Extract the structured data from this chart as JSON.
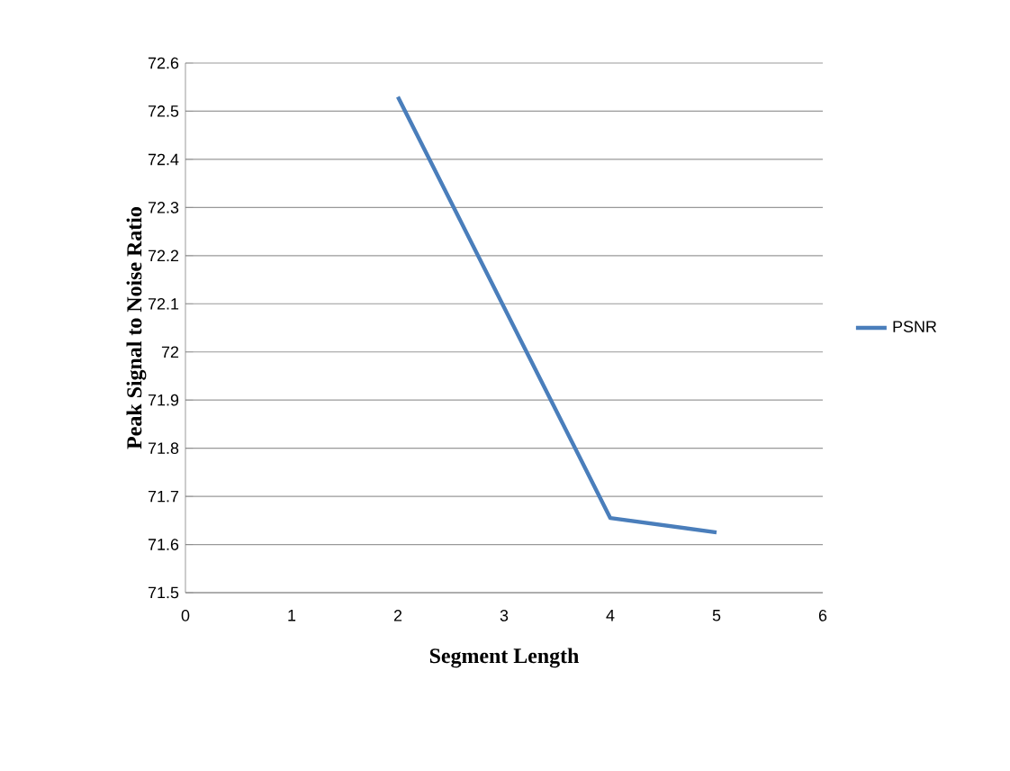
{
  "chart_data": {
    "type": "line",
    "xlabel": "Segment Length",
    "ylabel": "Peak Signal to Noise Ratio",
    "x": [
      2,
      4,
      5
    ],
    "series": [
      {
        "name": "PSNR",
        "color": "#4a7ebb",
        "values": [
          72.53,
          71.655,
          71.625
        ]
      }
    ],
    "xlim": [
      0,
      6
    ],
    "xticks": [
      0,
      1,
      2,
      3,
      4,
      5,
      6
    ],
    "ylim": [
      71.5,
      72.6
    ],
    "yticks": [
      71.5,
      71.6,
      71.7,
      71.8,
      71.9,
      {
        "value": 72,
        "label": "72"
      },
      72.1,
      72.2,
      72.3,
      72.4,
      72.5,
      72.6
    ],
    "grid": "y",
    "legend": "right",
    "marker": "none",
    "line_style": "solid"
  }
}
